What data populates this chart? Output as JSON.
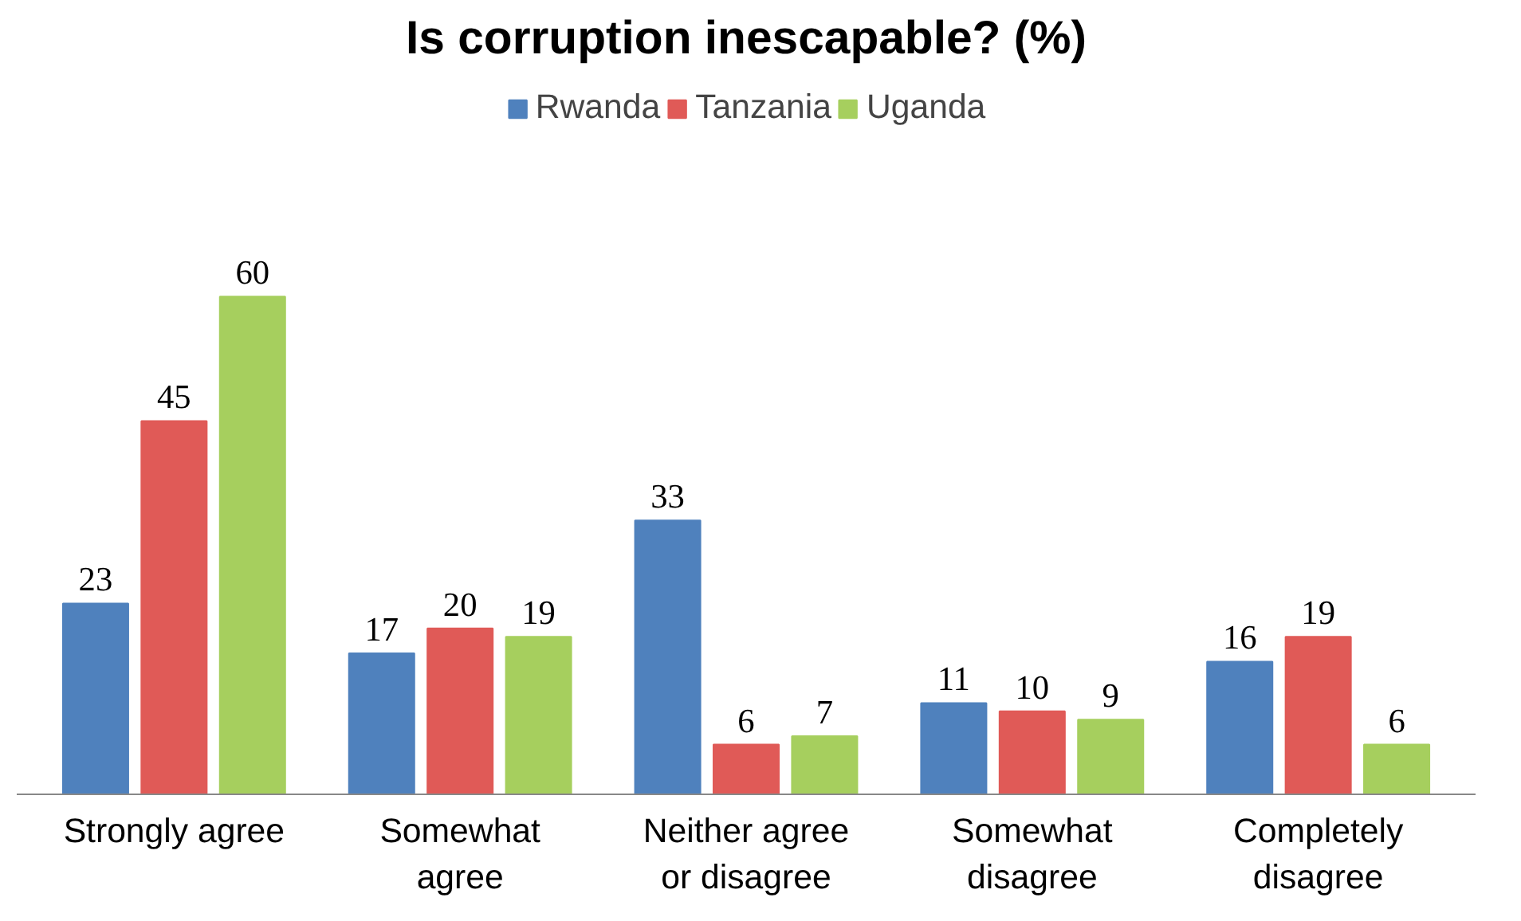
{
  "chart_data": {
    "type": "bar",
    "title": "Is corruption inescapable? (%)",
    "categories": [
      "Strongly agree",
      "Somewhat\nagree",
      "Neither agree\nor disagree",
      "Somewhat\ndisagree",
      "Completely\ndisagree"
    ],
    "series": [
      {
        "name": "Rwanda",
        "color": "#4f81bd",
        "values": [
          23,
          17,
          33,
          11,
          16
        ]
      },
      {
        "name": "Tanzania",
        "color": "#e05a57",
        "values": [
          45,
          20,
          6,
          10,
          19
        ]
      },
      {
        "name": "Uganda",
        "color": "#a6cf5e",
        "values": [
          60,
          19,
          7,
          9,
          6
        ]
      }
    ],
    "data_labels": true,
    "legend": "top",
    "grid": false
  }
}
